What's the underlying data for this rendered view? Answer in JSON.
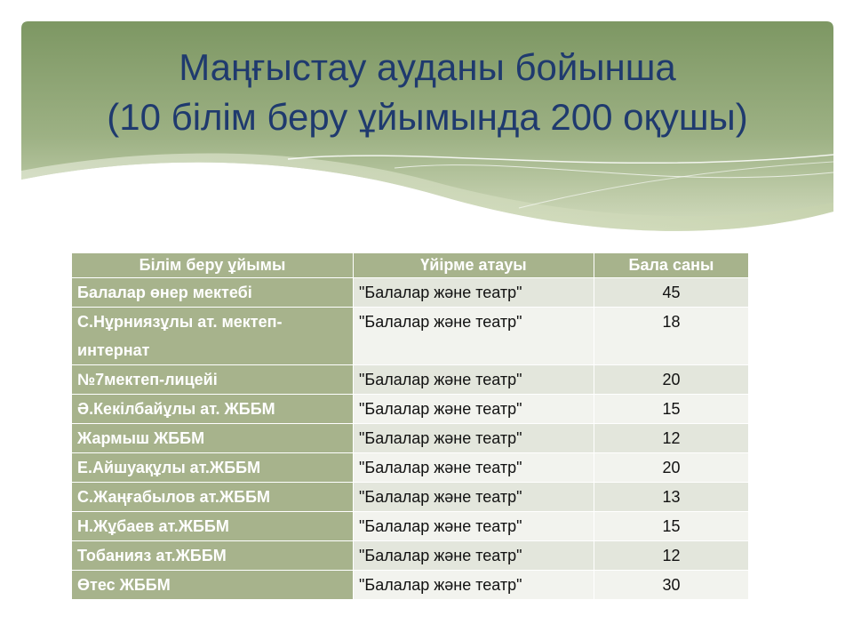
{
  "slide": {
    "title_line1": "Маңғыстау ауданы бойынша",
    "title_line2": "(10 білім беру ұйымында 200 оқушы)",
    "title_color": "#1f3a6e",
    "accent_green": "#7f9966",
    "table_header_color": "#a7b38c"
  },
  "table": {
    "headers": [
      "Білім беру ұйымы",
      "Үйірме атауы",
      "Бала саны"
    ],
    "rows": [
      {
        "org": "Балалар өнер мектебі",
        "club": "\"Балалар және театр\"",
        "count": "45"
      },
      {
        "org": "С.Нұрниязұлы ат. мектеп-интернат",
        "club": "\"Балалар және театр\"",
        "count": "18"
      },
      {
        "org": "№7мектеп-лицейі",
        "club": "\"Балалар және театр\"",
        "count": "20"
      },
      {
        "org": "Ә.Кекілбайұлы ат. ЖББМ",
        "club": "\"Балалар және театр\"",
        "count": "15"
      },
      {
        "org": "Жармыш ЖББМ",
        "club": "\"Балалар және театр\"",
        "count": "12"
      },
      {
        "org": "Е.Айшуақұлы ат.ЖББМ",
        "club": "\"Балалар және театр\"",
        "count": "20"
      },
      {
        "org": "С.Жаңғабылов ат.ЖББМ",
        "club": "\"Балалар және театр\"",
        "count": "13"
      },
      {
        "org": "Н.Жұбаев ат.ЖББМ",
        "club": "\"Балалар және театр\"",
        "count": "15"
      },
      {
        "org": "Тобанияз ат.ЖББМ",
        "club": "\"Балалар және театр\"",
        "count": "12"
      },
      {
        "org": "Өтес ЖББМ",
        "club": "\"Балалар және театр\"",
        "count": "30"
      }
    ]
  }
}
